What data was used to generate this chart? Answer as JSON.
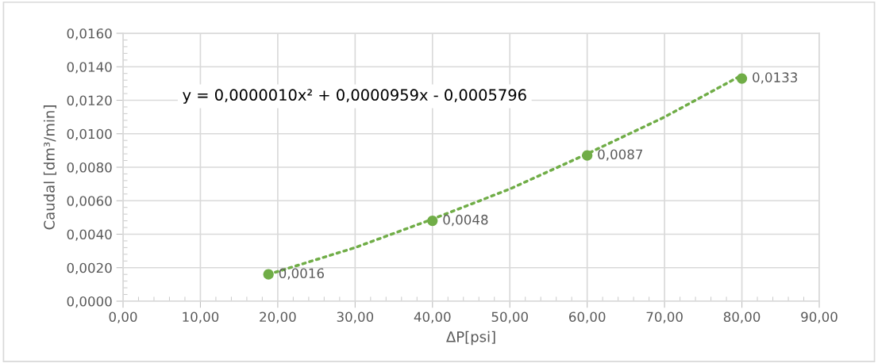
{
  "chart_data": {
    "type": "scatter",
    "xlabel": "ΔP[psi]",
    "ylabel": "Caudal [dm³/min]",
    "annotations": [
      "y = 0,0000010x² + 0,0000959x - 0,0005796"
    ],
    "series": [
      {
        "color": "#70ad47",
        "x": [
          18.8,
          40,
          60,
          80
        ],
        "values": [
          0.0016,
          0.0048,
          0.0087,
          0.0133
        ],
        "value_labels": [
          "0,0016",
          "0,0048",
          "0,0087",
          "0,0133"
        ],
        "marker": "circle"
      },
      {
        "type": "line",
        "color": "#70ad47",
        "line_style": "dotted",
        "x": [
          18.8,
          30,
          40,
          50,
          60,
          70,
          80
        ],
        "values": [
          0.0016,
          0.0032,
          0.0049,
          0.0067,
          0.0088,
          0.011,
          0.0135
        ]
      }
    ],
    "xlim": [
      0,
      90
    ],
    "xticks": [
      {
        "value": 0,
        "label": "0,00"
      },
      {
        "value": 10,
        "label": "10,00"
      },
      {
        "value": 20,
        "label": "20,00"
      },
      {
        "value": 30,
        "label": "30,00"
      },
      {
        "value": 40,
        "label": "40,00"
      },
      {
        "value": 50,
        "label": "50,00"
      },
      {
        "value": 60,
        "label": "60,00"
      },
      {
        "value": 70,
        "label": "70,00"
      },
      {
        "value": 80,
        "label": "80,00"
      },
      {
        "value": 90,
        "label": "90,00"
      }
    ],
    "ylim": [
      0,
      0.016
    ],
    "yticks": [
      {
        "value": 0,
        "label": "0,0000"
      },
      {
        "value": 0.002,
        "label": "0,0020"
      },
      {
        "value": 0.004,
        "label": "0,0040"
      },
      {
        "value": 0.006,
        "label": "0,0060"
      },
      {
        "value": 0.008,
        "label": "0,0080"
      },
      {
        "value": 0.01,
        "label": "0,0100"
      },
      {
        "value": 0.012,
        "label": "0,0120"
      },
      {
        "value": 0.014,
        "label": "0,0140"
      },
      {
        "value": 0.016,
        "label": "0,0160"
      }
    ],
    "grid": true
  }
}
